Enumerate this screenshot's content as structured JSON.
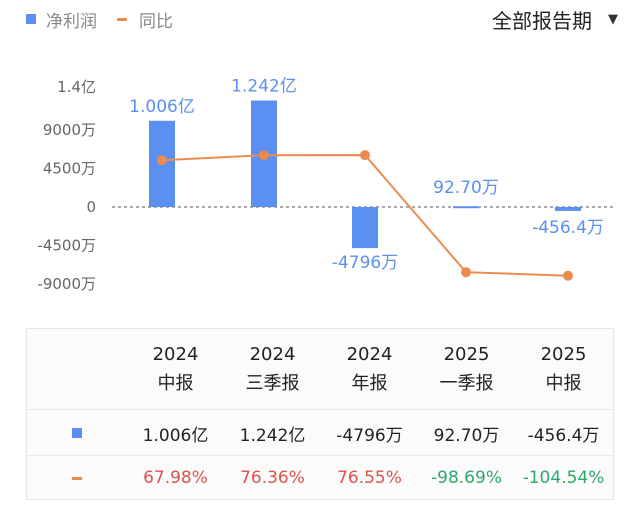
{
  "legend": {
    "bar_label": "净利润",
    "line_label": "同比"
  },
  "period_select": {
    "value": "全部报告期"
  },
  "colors": {
    "bar": "#5b8ff0",
    "line": "#ec8a4f",
    "positive": "#d9534f",
    "negative": "#2fa86b"
  },
  "chart_data": {
    "type": "bar",
    "categories": [
      "2024 中报",
      "2024 三季报",
      "2024 年报",
      "2025 一季报",
      "2025 中报"
    ],
    "y_ticks": [
      "1.4亿",
      "9000万",
      "4500万",
      "0",
      "-4500万",
      "-9000万"
    ],
    "y_tick_values": [
      14000,
      9000,
      4500,
      0,
      -4500,
      -9000
    ],
    "ylim": [
      -9000,
      14000
    ],
    "series": [
      {
        "name": "净利润",
        "unit": "万",
        "values": [
          10060,
          12420,
          -4796,
          92.7,
          -456.4
        ],
        "labels": [
          "1.006亿",
          "1.242亿",
          "-4796万",
          "92.70万",
          "-456.4万"
        ]
      },
      {
        "name": "同比",
        "unit": "%",
        "values": [
          67.98,
          76.36,
          76.55,
          -98.69,
          -104.54
        ]
      }
    ]
  },
  "table": {
    "headers": [
      {
        "year": "2024",
        "period": "中报"
      },
      {
        "year": "2024",
        "period": "三季报"
      },
      {
        "year": "2024",
        "period": "年报"
      },
      {
        "year": "2025",
        "period": "一季报"
      },
      {
        "year": "2025",
        "period": "中报"
      }
    ],
    "profit_row": [
      "1.006亿",
      "1.242亿",
      "-4796万",
      "92.70万",
      "-456.4万"
    ],
    "yoy_row": [
      "67.98%",
      "76.36%",
      "76.55%",
      "-98.69%",
      "-104.54%"
    ]
  }
}
